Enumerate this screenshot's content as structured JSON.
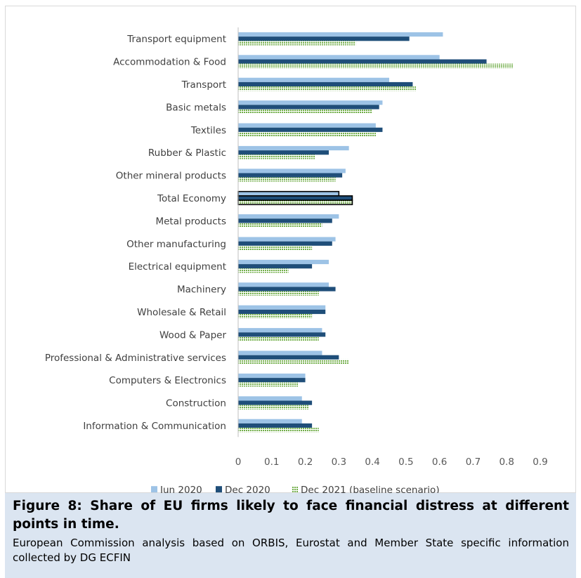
{
  "chart_data": {
    "type": "bar",
    "orientation": "horizontal",
    "categories": [
      "Transport equipment",
      "Accommodation & Food",
      "Transport",
      "Basic metals",
      "Textiles",
      "Rubber & Plastic",
      "Other mineral products",
      "Total Economy",
      "Metal products",
      "Other manufacturing",
      "Electrical equipment",
      "Machinery",
      "Wholesale & Retail",
      "Wood & Paper",
      "Professional & Administrative services",
      "Computers & Electronics",
      "Construction",
      "Information & Communication"
    ],
    "series": [
      {
        "name": "Jun 2020",
        "color": "#9dc3e6",
        "values": [
          0.61,
          0.6,
          0.45,
          0.43,
          0.41,
          0.33,
          0.32,
          0.3,
          0.3,
          0.29,
          0.27,
          0.27,
          0.26,
          0.25,
          0.25,
          0.2,
          0.19,
          0.19
        ]
      },
      {
        "name": "Dec 2020",
        "color": "#1f4e79",
        "values": [
          0.51,
          0.74,
          0.52,
          0.42,
          0.43,
          0.27,
          0.31,
          0.34,
          0.28,
          0.28,
          0.22,
          0.29,
          0.26,
          0.26,
          0.3,
          0.2,
          0.22,
          0.22
        ]
      },
      {
        "name": "Dec 2021 (baseline scenario)",
        "color": "#70ad47",
        "values": [
          0.35,
          0.82,
          0.53,
          0.4,
          0.41,
          0.23,
          0.29,
          0.34,
          0.25,
          0.22,
          0.15,
          0.24,
          0.22,
          0.24,
          0.33,
          0.18,
          0.21,
          0.24
        ]
      }
    ],
    "highlighted_category": "Total Economy",
    "xlim": [
      0,
      0.9
    ],
    "xticks": [
      0,
      0.1,
      0.2,
      0.3,
      0.4,
      0.5,
      0.6,
      0.7,
      0.8,
      0.9
    ],
    "xtick_labels": [
      "0",
      "0.1",
      "0.2",
      "0.3",
      "0.4",
      "0.5",
      "0.6",
      "0.7",
      "0.8",
      "0.9"
    ],
    "grid": false,
    "legend_position": "bottom"
  },
  "caption": {
    "title": "Figure 8: Share of EU firms likely to face financial distress at different points in time.",
    "source": "European Commission analysis based on ORBIS, Eurostat and Member State specific information collected by DG ECFIN"
  }
}
